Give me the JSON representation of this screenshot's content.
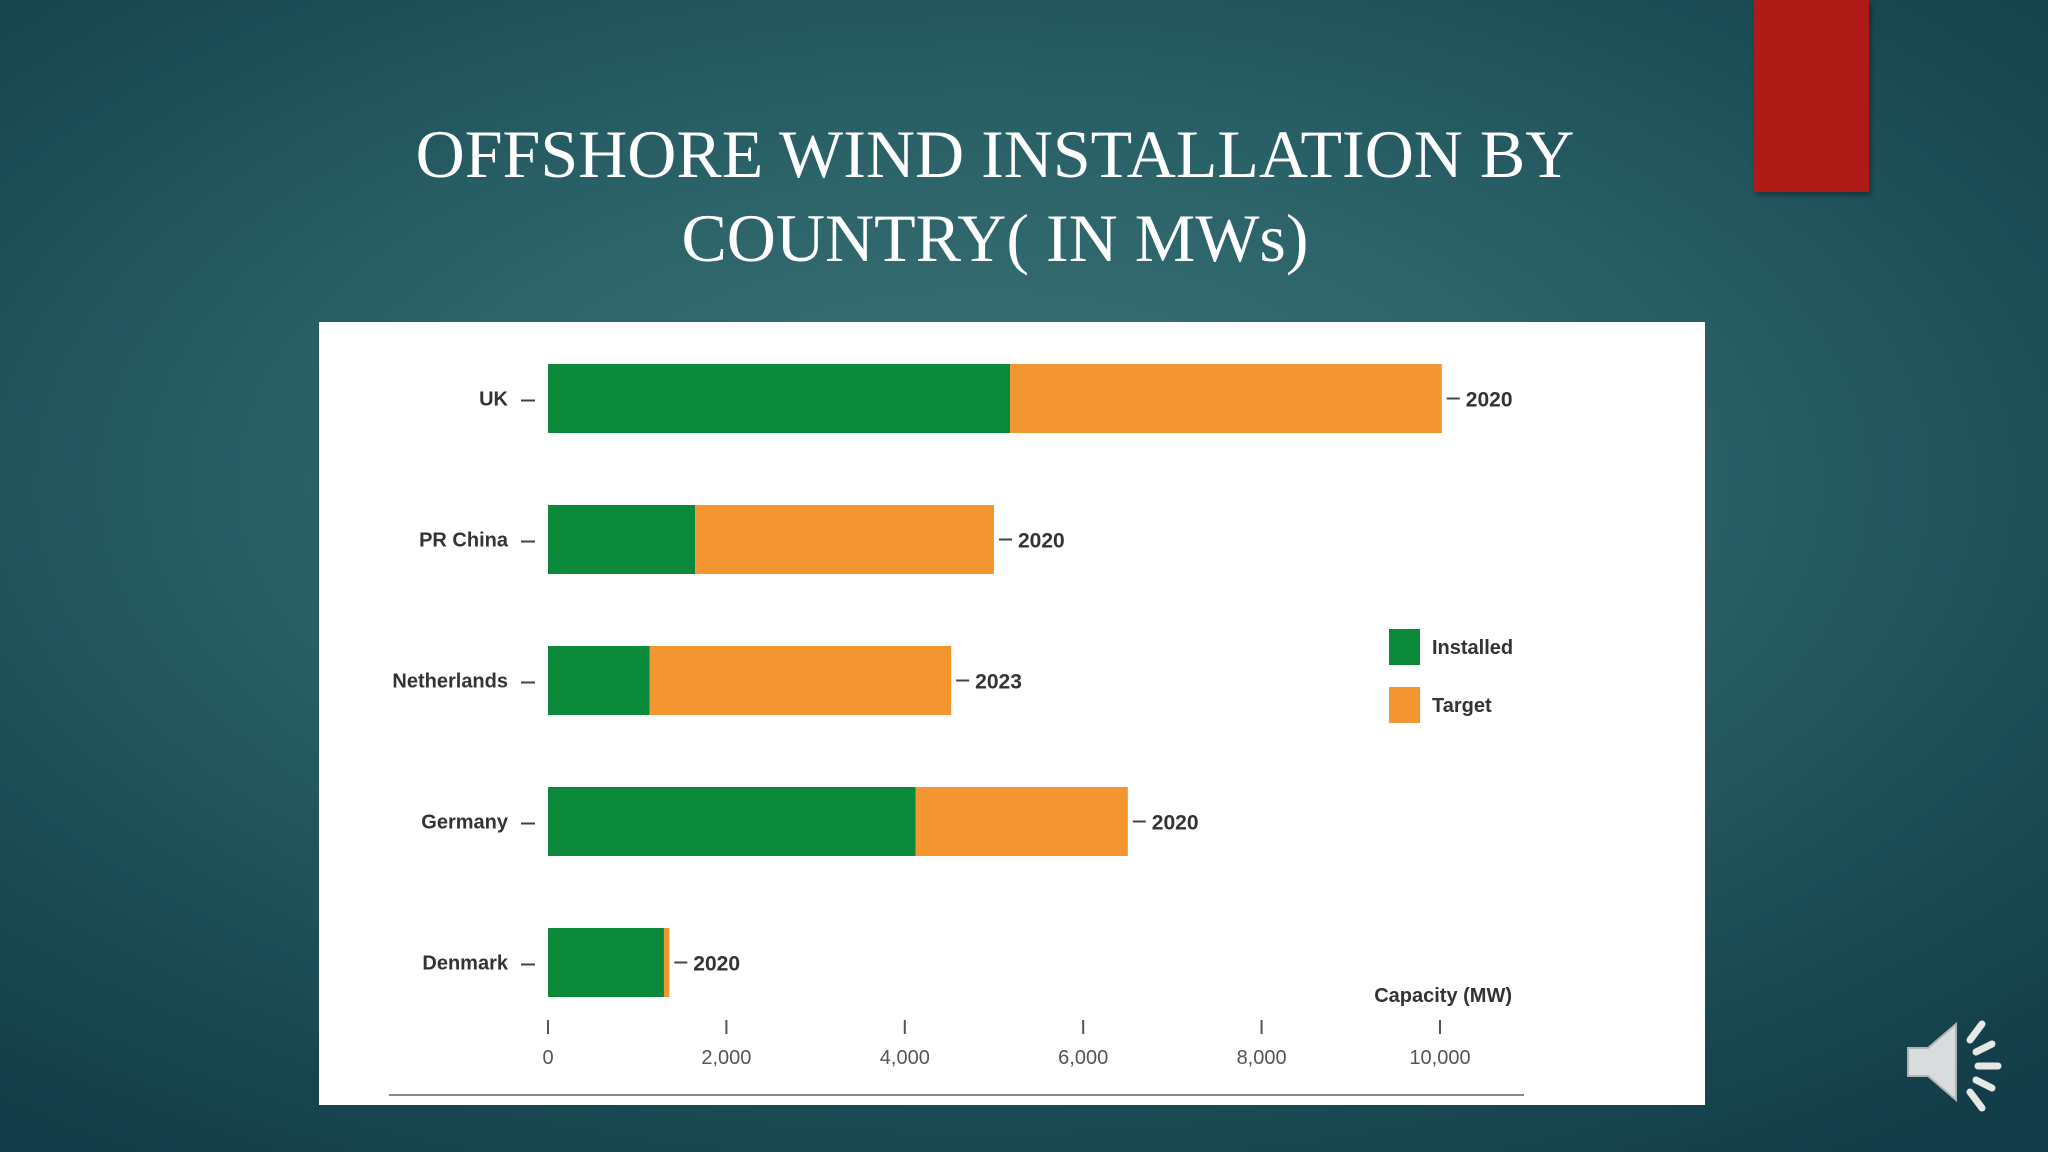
{
  "slide": {
    "title": "OFFSHORE WIND INSTALLATION BY\nCOUNTRY( IN MWs)"
  },
  "colors": {
    "installed": "#0a893b",
    "target": "#f39530",
    "accent_tab": "#ae1a15"
  },
  "icons": {
    "speaker": "speaker-icon"
  },
  "chart_data": {
    "type": "bar",
    "orientation": "horizontal",
    "stacked": true,
    "categories": [
      "UK",
      "PR China",
      "Netherlands",
      "Germany",
      "Denmark"
    ],
    "series": [
      {
        "name": "Installed",
        "values": [
          5180,
          1650,
          1140,
          4120,
          1300
        ]
      },
      {
        "name": "Target",
        "values": [
          4840,
          3350,
          3380,
          2380,
          60
        ]
      }
    ],
    "target_years": [
      "2020",
      "2020",
      "2023",
      "2020",
      "2020"
    ],
    "xlabel": "Capacity (MW)",
    "xlim": [
      0,
      10000
    ],
    "xticks": [
      0,
      2000,
      4000,
      6000,
      8000,
      10000
    ],
    "xtick_labels": [
      "0",
      "2,000",
      "4,000",
      "6,000",
      "8,000",
      "10,000"
    ],
    "legend": {
      "position": "right",
      "entries": [
        "Installed",
        "Target"
      ]
    },
    "grid": false
  }
}
